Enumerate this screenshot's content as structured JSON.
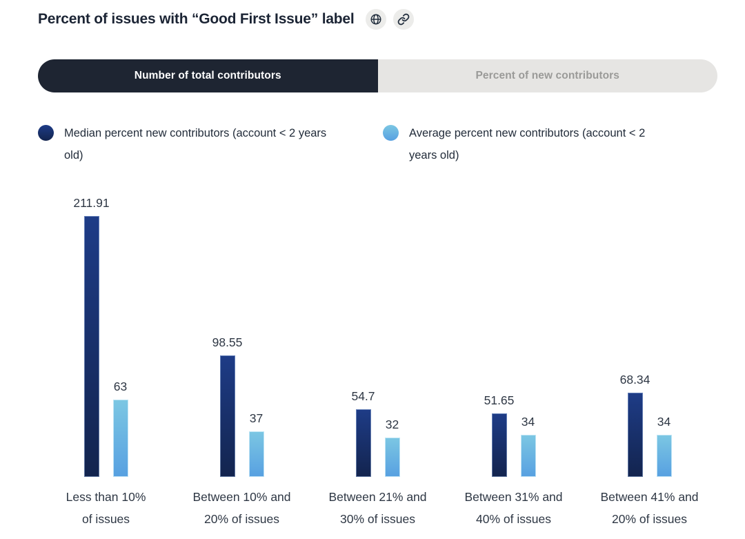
{
  "header": {
    "title": "Percent of issues with “Good First Issue” label"
  },
  "tabs": {
    "items": [
      {
        "label": "Number of total contributors",
        "active": true
      },
      {
        "label": "Percent of new contributors",
        "active": false
      }
    ]
  },
  "legend": [
    {
      "label": "Median percent new contributors (account < 2 years old)"
    },
    {
      "label": "Average percent new contributors (account < 2 years old)"
    }
  ],
  "chart_data": {
    "type": "bar",
    "title": "Percent of issues with “Good First Issue” label",
    "categories": [
      "Less than 10% of issues",
      "Between 10% and 20% of issues",
      "Between 21% and 30% of issues",
      "Between 31% and 40% of issues",
      "Between 41% and 20% of issues"
    ],
    "category_lines": [
      [
        "Less than 10%",
        "of issues"
      ],
      [
        "Between 10% and",
        "20% of issues"
      ],
      [
        "Between 21% and",
        "30% of issues"
      ],
      [
        "Between 31% and",
        "40% of issues"
      ],
      [
        "Between 41% and",
        "20% of issues"
      ]
    ],
    "series": [
      {
        "name": "Median percent new contributors (account < 2 years old)",
        "values": [
          211.91,
          98.55,
          54.7,
          51.65,
          68.34
        ]
      },
      {
        "name": "Average percent new contributors (account < 2 years old)",
        "values": [
          63,
          37,
          32,
          34,
          34
        ]
      }
    ],
    "xlabel": "",
    "ylabel": "",
    "ylim": [
      0,
      211.91
    ],
    "grid": false,
    "value_labels": true,
    "legend_position": "top"
  },
  "colors": {
    "text": "#1b2434",
    "chart_text": "#2e3744",
    "accent_dark": "#1e2532",
    "tab_inactive_bg": "#e6e5e3",
    "tab_inactive_text": "#9a9a98",
    "icon_button_bg": "#ececea",
    "series": [
      {
        "top": "#1e3c87",
        "bottom": "#13244e",
        "edge": "rgba(160,185,225,0.55)"
      },
      {
        "top": "#7cc7e3",
        "bottom": "#57a0e1",
        "edge": "rgba(205,235,248,0.85)"
      }
    ]
  }
}
